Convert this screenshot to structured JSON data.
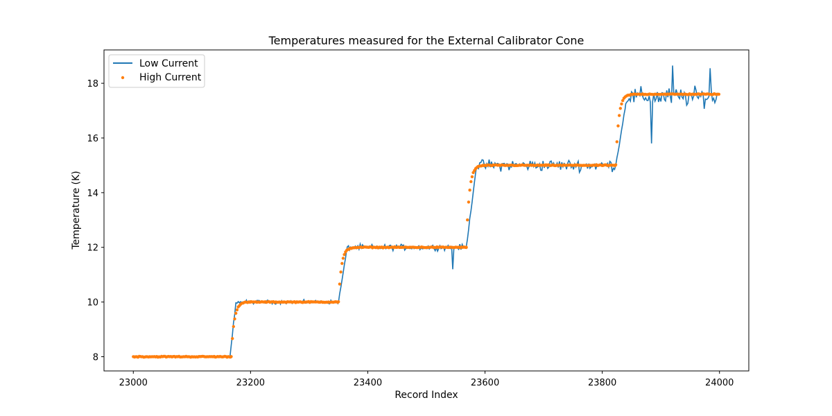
{
  "chart_data": {
    "type": "line",
    "title": "Temperatures measured for the External Calibrator Cone",
    "xlabel": "Record Index",
    "ylabel": "Temperature (K)",
    "xlim": [
      22950,
      24050
    ],
    "ylim": [
      7.48,
      19.22
    ],
    "xticks": [
      23000,
      23200,
      23400,
      23600,
      23800,
      24000
    ],
    "yticks": [
      8,
      10,
      12,
      14,
      16,
      18
    ],
    "legend_position": "top-left",
    "series": [
      {
        "name": "Low Current",
        "style": "line",
        "color": "#1f77b4",
        "segments": [
          {
            "start": 23000,
            "end": 23165,
            "level": 8.0,
            "noise": 0.05
          },
          {
            "start": 23165,
            "end": 23175,
            "level": 10.0,
            "ramp": true
          },
          {
            "start": 23175,
            "end": 23350,
            "level": 10.0,
            "noise": 0.1
          },
          {
            "start": 23350,
            "end": 23365,
            "level": 12.0,
            "ramp": true
          },
          {
            "start": 23365,
            "end": 23568,
            "level": 12.0,
            "noise": 0.15
          },
          {
            "start": 23568,
            "end": 23585,
            "level": 14.9,
            "ramp": true
          },
          {
            "start": 23585,
            "end": 23823,
            "level": 15.0,
            "noise": 0.3
          },
          {
            "start": 23823,
            "end": 23840,
            "level": 17.2,
            "ramp": true
          },
          {
            "start": 23840,
            "end": 24000,
            "level": 17.5,
            "noise": 0.5
          }
        ],
        "outliers": [
          [
            23545,
            11.2
          ],
          [
            23884,
            15.8
          ],
          [
            23920,
            18.65
          ],
          [
            23985,
            18.55
          ]
        ]
      },
      {
        "name": "High Current",
        "style": "scatter",
        "color": "#ff7f0e",
        "step_index": [
          23000,
          23167,
          23350,
          23568,
          23823,
          24000
        ],
        "step_levels": [
          8.0,
          10.0,
          12.0,
          15.0,
          17.6
        ],
        "tau": 5
      }
    ]
  }
}
